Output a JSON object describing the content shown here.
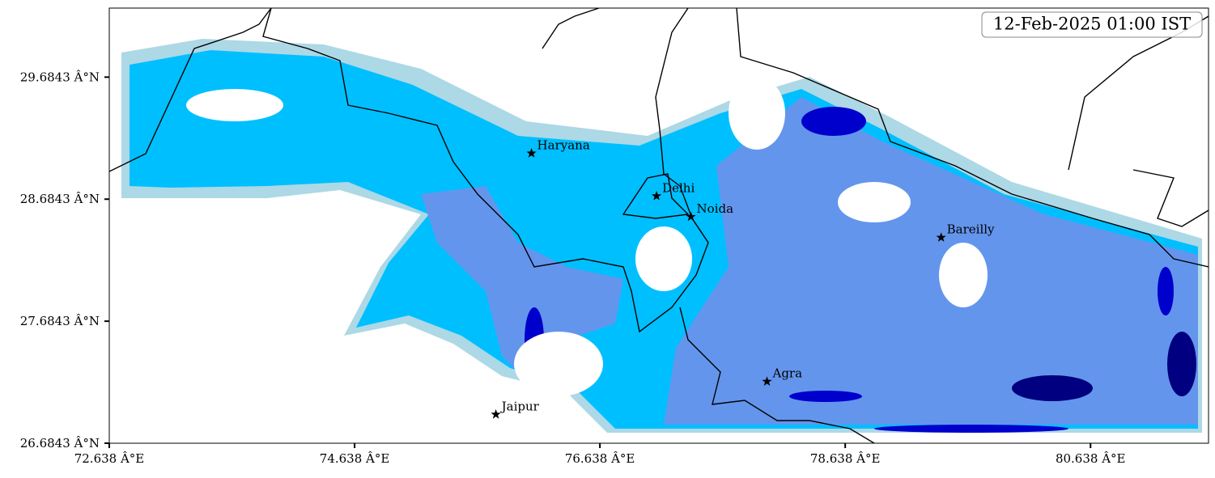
{
  "map": {
    "timestamp": "12-Feb-2025 01:00 IST",
    "xlim": [
      72.638,
      81.6
    ],
    "ylim": [
      26.6843,
      30.25
    ],
    "xticks": [
      {
        "value": 72.638,
        "label": "72.638 Â°E"
      },
      {
        "value": 74.638,
        "label": "74.638 Â°E"
      },
      {
        "value": 76.638,
        "label": "76.638 Â°E"
      },
      {
        "value": 78.638,
        "label": "78.638 Â°E"
      },
      {
        "value": 80.638,
        "label": "80.638 Â°E"
      }
    ],
    "yticks": [
      {
        "value": 26.6843,
        "label": "26.6843 Â°N"
      },
      {
        "value": 27.6843,
        "label": "27.6843 Â°N"
      },
      {
        "value": 28.6843,
        "label": "28.6843 Â°N"
      },
      {
        "value": 29.6843,
        "label": "29.6843 Â°N"
      }
    ],
    "cities": [
      {
        "name": "Haryana",
        "lon": 76.08,
        "lat": 29.06
      },
      {
        "name": "Delhi",
        "lon": 77.1,
        "lat": 28.71
      },
      {
        "name": "Noida",
        "lon": 77.38,
        "lat": 28.54
      },
      {
        "name": "Bareilly",
        "lon": 79.42,
        "lat": 28.37
      },
      {
        "name": "Agra",
        "lon": 78.0,
        "lat": 27.19
      },
      {
        "name": "Jaipur",
        "lon": 75.79,
        "lat": 26.92
      }
    ]
  }
}
